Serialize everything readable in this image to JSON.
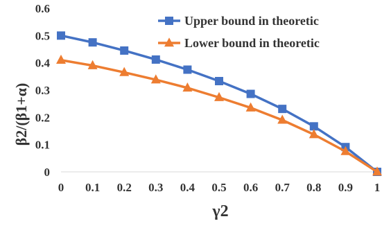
{
  "chart_data": {
    "type": "line",
    "xlabel": "γ2",
    "ylabel": "β2/(β1+α)",
    "x": [
      0,
      0.1,
      0.2,
      0.3,
      0.4,
      0.5,
      0.6,
      0.7,
      0.8,
      0.9,
      1
    ],
    "x_tick_labels": [
      "0",
      "0.1",
      "0.2",
      "0.3",
      "0.4",
      "0.5",
      "0.6",
      "0.7",
      "0.8",
      "0.9",
      "1"
    ],
    "y_tick_labels": [
      "0",
      "0.1",
      "0.2",
      "0.3",
      "0.4",
      "0.5",
      "0.6"
    ],
    "ylim": [
      0,
      0.6
    ],
    "grid": false,
    "legend_position": "top-right",
    "series": [
      {
        "name": "Upper bound in theoretic",
        "marker": "square",
        "color": "#4472C4",
        "values": [
          0.5,
          0.475,
          0.445,
          0.412,
          0.375,
          0.333,
          0.286,
          0.231,
          0.167,
          0.091,
          0.0
        ]
      },
      {
        "name": "Lower bound in theoretic",
        "marker": "triangle",
        "color": "#ED7D31",
        "values": [
          0.41,
          0.39,
          0.365,
          0.338,
          0.308,
          0.273,
          0.235,
          0.19,
          0.137,
          0.075,
          0.0
        ]
      }
    ]
  }
}
